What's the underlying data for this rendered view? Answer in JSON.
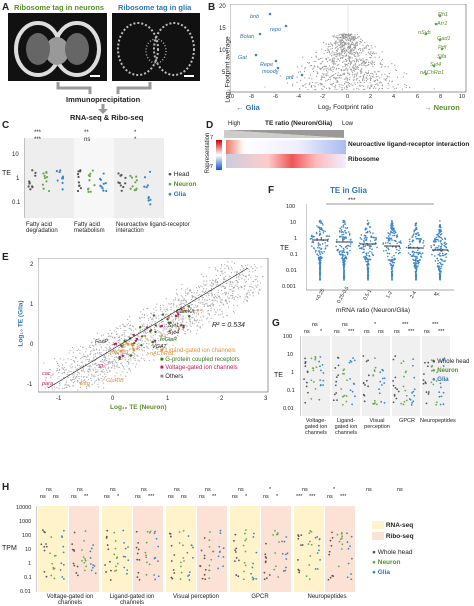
{
  "panels": {
    "A": {
      "label": "A",
      "title_neurons": "Ribosome tag in neurons",
      "title_glia": "Ribosome tag in glia",
      "step1": "Immunoprecipitation",
      "step2": "RNA-seq & Ribo-seq",
      "colors": {
        "neurons": "#5a8f2a",
        "glia": "#2e75b6"
      }
    },
    "B": {
      "label": "B",
      "ylabel": "Log₂ Footprint average",
      "xlabel": "Log₂ Footprint ratio",
      "xticks": [
        "-10",
        "-8",
        "-6",
        "-4",
        "-2",
        "0",
        "2",
        "4",
        "6",
        "8",
        "10"
      ],
      "yticks": [
        "20",
        "15",
        "10",
        "5"
      ],
      "glia_arrow": "Glia",
      "neuron_arrow": "Neuron",
      "glia_genes": [
        "bnb",
        "repo",
        "Bolan",
        "Gat",
        "Repe",
        "moody",
        "pnt"
      ],
      "neuron_genes": [
        "Rh1",
        "Arr1",
        "nSyb",
        "Gad1",
        "Pdf",
        "Sifa",
        "Syt4",
        "nAChRα1"
      ]
    },
    "C": {
      "label": "C",
      "ylabel": "TE",
      "yticks": [
        "10",
        "1",
        "0.1"
      ],
      "groups": [
        "Fatty acid degradation",
        "Fatty acid metabolism",
        "Neuroactive ligand-receptor interaction"
      ],
      "sig": [
        "***",
        "***",
        "**",
        "ns",
        "*",
        "*"
      ],
      "legend": [
        "Head",
        "Neuron",
        "Glia"
      ]
    },
    "D": {
      "label": "D",
      "title": "TE ratio (Neuron/Glia)",
      "high": "High",
      "low": "Low",
      "ylabel": "Representation",
      "scale_top": "7",
      "scale_bottom": "-7",
      "rows": [
        "Neuroactive ligand-receptor interaction",
        "Ribosome"
      ]
    },
    "E": {
      "label": "E",
      "ylabel": "Log₁₀ TE (Glia)",
      "xlabel": "Log₁₀ TE (Neuron)",
      "r2": "R² = 0.534",
      "xticks": [
        "-1",
        "0",
        "1",
        "2",
        "3"
      ],
      "yticks": [
        "2",
        "1",
        "0",
        "-1"
      ],
      "genes": [
        "CamKII",
        "Syt1",
        "Syt4",
        "mGluR",
        "VGAT",
        "nAChRα1",
        "Kir2.1D",
        "Sh",
        "FoxP",
        "GluRIB",
        "cac",
        "para",
        "Eag"
      ],
      "legend": [
        "Ligand-gated ion channels",
        "G-protein coupled receptors",
        "Voltage-gated ion channels",
        "Others"
      ]
    },
    "F": {
      "label": "F",
      "title": "TE in Glia",
      "ylabel": "TE",
      "xlabel": "mRNA ratio (Neuron/Glia)",
      "yticks": [
        "100",
        "10",
        "1",
        "0.1",
        "0.01",
        "0.001"
      ],
      "categories": [
        "<0.25",
        "0.25-0.5",
        "0.5-1",
        "1-2",
        "2-4",
        "4<"
      ],
      "sig": "***"
    },
    "G": {
      "label": "G",
      "ylabel": "TE",
      "yticks": [
        "100",
        "10",
        "1",
        "0.1",
        "0.01"
      ],
      "groups": [
        "Voltage-gated ion channels",
        "Ligand-gated ion channels",
        "Visual perception",
        "GPCR",
        "Neuropeptides"
      ],
      "sig_top": [
        "ns",
        "ns",
        "*",
        "***",
        "***"
      ],
      "sig_pairs": [
        [
          "ns",
          "*"
        ],
        [
          "ns",
          "***"
        ],
        [
          "ns",
          "ns"
        ],
        [
          "ns",
          "***"
        ],
        [
          "ns",
          "***"
        ]
      ],
      "legend": [
        "Whole head",
        "Neuron",
        "Glia"
      ]
    },
    "H": {
      "label": "H",
      "ylabel": "TPM",
      "yticks": [
        "10000",
        "1000",
        "100",
        "10",
        "1",
        "0.1",
        "0.01"
      ],
      "groups": [
        "Voltage-gated ion channels",
        "Ligand-gated ion channels",
        "Visual perception",
        "GPCR",
        "Neuropeptides"
      ],
      "sig_top": [
        "ns",
        "ns",
        "ns",
        "ns",
        "ns",
        "ns",
        "ns",
        "*",
        "ns",
        "*",
        "ns",
        "ns"
      ],
      "sig_pairs": [
        "ns",
        "ns",
        "ns",
        "**",
        "ns",
        "*",
        "ns",
        "***",
        "ns",
        "ns",
        "ns",
        "**",
        "ns",
        "*",
        "ns",
        "*",
        "***",
        "***",
        "ns",
        "***"
      ],
      "legend_bg": [
        "RNA-seq",
        "Ribo-seq"
      ],
      "legend": [
        "Whole head",
        "Neuron",
        "Glia"
      ]
    }
  },
  "colors": {
    "head": "#555555",
    "neuron": "#6aa84f",
    "glia": "#3d85c6",
    "glia_text": "#2e75b6",
    "neuron_text": "#5a8f2a",
    "ligand": "#e69138",
    "gpcr": "#38761d",
    "voltage": "#c2185b",
    "others": "#888888",
    "rna_bg": "#fff3cc",
    "ribo_bg": "#fbe2d5"
  }
}
